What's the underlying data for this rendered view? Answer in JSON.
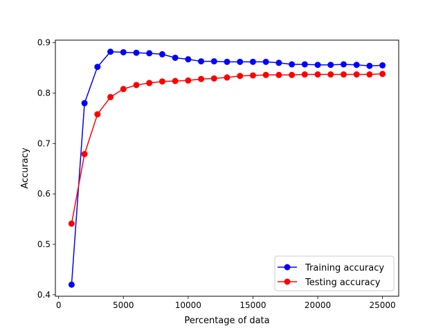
{
  "chart_data": {
    "type": "line",
    "title": "",
    "xlabel": "Percentage of data",
    "ylabel": "Accuracy",
    "xlim": [
      -250,
      26250
    ],
    "ylim": [
      0.397,
      0.905
    ],
    "xticks": [
      0,
      5000,
      10000,
      15000,
      20000,
      25000
    ],
    "xtick_labels": [
      "0",
      "5000",
      "10000",
      "15000",
      "20000",
      "25000"
    ],
    "yticks": [
      0.4,
      0.5,
      0.6,
      0.7,
      0.8,
      0.9
    ],
    "ytick_labels": [
      "0.4",
      "0.5",
      "0.6",
      "0.7",
      "0.8",
      "0.9"
    ],
    "grid": false,
    "legend_position": "lower-right",
    "x": [
      1000,
      2000,
      3000,
      4000,
      5000,
      6000,
      7000,
      8000,
      9000,
      10000,
      11000,
      12000,
      13000,
      14000,
      15000,
      16000,
      17000,
      18000,
      19000,
      20000,
      21000,
      22000,
      23000,
      24000,
      25000
    ],
    "series": [
      {
        "name": "Training accuracy",
        "color": "#0000ff",
        "values": [
          0.42,
          0.78,
          0.852,
          0.882,
          0.881,
          0.88,
          0.879,
          0.877,
          0.87,
          0.867,
          0.863,
          0.863,
          0.862,
          0.862,
          0.862,
          0.862,
          0.86,
          0.857,
          0.857,
          0.856,
          0.856,
          0.857,
          0.856,
          0.854,
          0.855
        ]
      },
      {
        "name": "Testing accuracy",
        "color": "#ff0000",
        "values": [
          0.541,
          0.679,
          0.758,
          0.792,
          0.808,
          0.816,
          0.82,
          0.823,
          0.824,
          0.825,
          0.828,
          0.829,
          0.831,
          0.834,
          0.835,
          0.836,
          0.836,
          0.836,
          0.837,
          0.837,
          0.837,
          0.837,
          0.837,
          0.837,
          0.838
        ]
      }
    ]
  }
}
